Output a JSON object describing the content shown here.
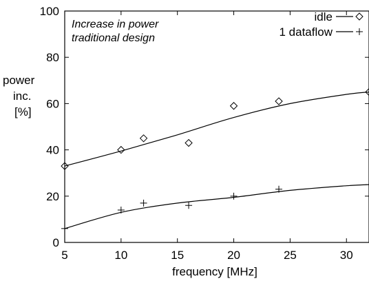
{
  "chart_data": {
    "type": "scatter",
    "title": "",
    "annotation_lines": [
      "Increase in power",
      "traditional design"
    ],
    "xlabel": "frequency [MHz]",
    "ylabel_lines": [
      "power",
      "inc.",
      "[%]"
    ],
    "xlim": [
      5,
      32
    ],
    "ylim": [
      0,
      100
    ],
    "xticks": [
      5,
      10,
      15,
      20,
      25,
      30
    ],
    "yticks": [
      0,
      20,
      40,
      60,
      80,
      100
    ],
    "grid": false,
    "legend_position": "top-right",
    "series": [
      {
        "name": "idle",
        "marker": "diamond",
        "x": [
          5,
          10,
          12,
          16,
          20,
          24,
          32
        ],
        "y": [
          33,
          40,
          45,
          43,
          59,
          61,
          65
        ],
        "fit": {
          "x": [
            5,
            10,
            15,
            20,
            25,
            30,
            32
          ],
          "y": [
            33,
            39.5,
            46.5,
            54,
            60,
            64,
            65
          ]
        }
      },
      {
        "name": "1 dataflow",
        "marker": "plus",
        "x": [
          5,
          10,
          12,
          16,
          20,
          24,
          32
        ],
        "y": [
          6,
          14,
          17,
          16,
          20,
          23,
          25
        ],
        "fit": {
          "x": [
            5,
            10,
            15,
            20,
            25,
            30,
            32
          ],
          "y": [
            6,
            13,
            17,
            19.5,
            22.5,
            24.5,
            25
          ]
        }
      }
    ]
  }
}
